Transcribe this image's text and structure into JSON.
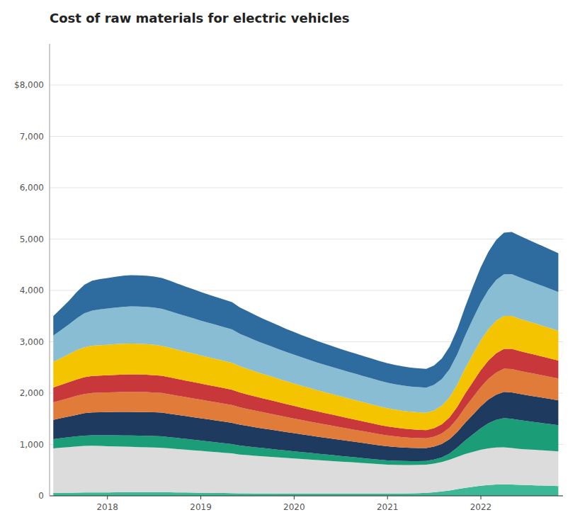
{
  "chart_data": {
    "type": "area",
    "title": "Cost of raw materials for electric vehicles",
    "stacked": true,
    "grid": true,
    "x": [
      2017.42,
      2017.5032,
      2017.5865,
      2017.6697,
      2017.7529,
      2017.8362,
      2017.9194,
      2018.0026,
      2018.0858,
      2018.1691,
      2018.2523,
      2018.3355,
      2018.4188,
      2018.502,
      2018.5852,
      2018.6685,
      2018.7517,
      2018.8349,
      2018.9182,
      2019.0014,
      2019.0846,
      2019.1678,
      2019.2511,
      2019.3343,
      2019.4175,
      2019.5008,
      2019.584,
      2019.6672,
      2019.7505,
      2019.8337,
      2019.9169,
      2020.0002,
      2020.0834,
      2020.1666,
      2020.2498,
      2020.3331,
      2020.4163,
      2020.4995,
      2020.5828,
      2020.666,
      2020.7492,
      2020.8325,
      2020.9157,
      2020.9989,
      2021.0822,
      2021.1654,
      2021.2486,
      2021.3318,
      2021.4151,
      2021.4983,
      2021.5815,
      2021.6648,
      2021.748,
      2021.8312,
      2021.9145,
      2021.9977,
      2022.0809,
      2022.1642,
      2022.2474,
      2022.3306,
      2022.4138,
      2022.4971,
      2022.5803,
      2022.6635,
      2022.7468,
      2022.83
    ],
    "xlim": [
      2017.38,
      2022.88
    ],
    "xticks": [
      2018,
      2019,
      2020,
      2021,
      2022
    ],
    "ylim": [
      0,
      8800
    ],
    "yticks": [
      0,
      {
        "value": 1000,
        "label": "1,000"
      },
      {
        "value": 2000,
        "label": "2,000"
      },
      {
        "value": 3000,
        "label": "3,000"
      },
      {
        "value": 4000,
        "label": "4,000"
      },
      {
        "value": 5000,
        "label": "5,000"
      },
      {
        "value": 6000,
        "label": "6,000"
      },
      {
        "value": 7000,
        "label": "7,000"
      },
      {
        "value": 8000,
        "label": "$8,000"
      }
    ],
    "series": [
      {
        "color": "#3db897",
        "values": [
          55,
          58,
          60,
          62,
          64,
          65,
          66,
          67,
          68,
          69,
          70,
          70,
          70,
          70,
          70,
          68,
          66,
          64,
          62,
          60,
          58,
          56,
          54,
          52,
          50,
          48,
          46,
          45,
          44,
          43,
          42,
          42,
          42,
          42,
          42,
          42,
          42,
          42,
          42,
          42,
          42,
          42,
          42,
          42,
          43,
          45,
          48,
          52,
          58,
          68,
          85,
          105,
          130,
          155,
          175,
          195,
          210,
          220,
          225,
          220,
          215,
          210,
          205,
          200,
          195,
          190
        ]
      },
      {
        "color": "#dcdcdc",
        "values": [
          870,
          880,
          890,
          900,
          910,
          910,
          905,
          900,
          895,
          890,
          885,
          880,
          875,
          870,
          865,
          855,
          845,
          835,
          825,
          815,
          805,
          795,
          785,
          775,
          755,
          745,
          735,
          725,
          715,
          705,
          695,
          685,
          675,
          665,
          655,
          645,
          635,
          625,
          615,
          605,
          595,
          585,
          575,
          565,
          560,
          555,
          552,
          550,
          548,
          560,
          575,
          600,
          630,
          660,
          680,
          700,
          715,
          720,
          720,
          710,
          700,
          695,
          690,
          685,
          680,
          675
        ]
      },
      {
        "color": "#1b9e77",
        "values": [
          180,
          185,
          190,
          195,
          200,
          205,
          208,
          212,
          215,
          218,
          220,
          222,
          225,
          225,
          225,
          220,
          215,
          210,
          205,
          200,
          195,
          190,
          185,
          180,
          175,
          170,
          165,
          160,
          155,
          150,
          145,
          140,
          135,
          130,
          125,
          120,
          115,
          110,
          105,
          100,
          95,
          90,
          85,
          82,
          80,
          78,
          76,
          75,
          74,
          78,
          90,
          120,
          180,
          260,
          340,
          420,
          490,
          540,
          570,
          570,
          560,
          550,
          540,
          530,
          520,
          510
        ]
      },
      {
        "color": "#1e3a5f",
        "values": [
          375,
          390,
          405,
          420,
          435,
          445,
          450,
          452,
          455,
          458,
          460,
          460,
          462,
          462,
          460,
          455,
          450,
          445,
          440,
          435,
          430,
          425,
          420,
          415,
          405,
          398,
          390,
          382,
          375,
          368,
          360,
          353,
          345,
          338,
          330,
          325,
          318,
          312,
          306,
          300,
          294,
          288,
          282,
          276,
          270,
          265,
          260,
          255,
          250,
          252,
          260,
          278,
          305,
          345,
          385,
          425,
          460,
          490,
          510,
          515,
          510,
          505,
          500,
          495,
          490,
          485
        ]
      },
      {
        "color": "#e07b39",
        "values": [
          340,
          350,
          360,
          370,
          375,
          378,
          380,
          382,
          385,
          388,
          390,
          390,
          388,
          385,
          382,
          378,
          374,
          370,
          366,
          362,
          358,
          354,
          350,
          346,
          338,
          330,
          322,
          315,
          308,
          300,
          292,
          285,
          278,
          271,
          264,
          258,
          252,
          246,
          240,
          234,
          228,
          222,
          216,
          210,
          205,
          200,
          196,
          193,
          190,
          195,
          205,
          225,
          258,
          300,
          338,
          375,
          405,
          430,
          450,
          455,
          450,
          445,
          440,
          435,
          430,
          425
        ]
      },
      {
        "color": "#c8373a",
        "values": [
          290,
          300,
          308,
          318,
          325,
          330,
          332,
          335,
          338,
          340,
          342,
          342,
          340,
          338,
          335,
          330,
          326,
          322,
          318,
          314,
          310,
          306,
          302,
          298,
          290,
          283,
          276,
          270,
          264,
          258,
          252,
          246,
          240,
          234,
          228,
          222,
          216,
          210,
          204,
          198,
          192,
          186,
          180,
          176,
          172,
          168,
          164,
          162,
          160,
          165,
          178,
          200,
          232,
          268,
          300,
          330,
          355,
          375,
          388,
          392,
          385,
          378,
          372,
          365,
          358,
          350
        ]
      },
      {
        "color": "#f5c400",
        "values": [
          500,
          520,
          545,
          570,
          585,
          590,
          592,
          595,
          598,
          600,
          600,
          598,
          595,
          590,
          585,
          578,
          570,
          562,
          555,
          548,
          542,
          536,
          530,
          524,
          510,
          498,
          486,
          475,
          465,
          455,
          445,
          436,
          428,
          420,
          412,
          405,
          398,
          392,
          386,
          380,
          374,
          368,
          362,
          356,
          350,
          345,
          342,
          340,
          338,
          345,
          362,
          390,
          435,
          490,
          540,
          580,
          610,
          635,
          640,
          640,
          630,
          620,
          610,
          600,
          590,
          580
        ]
      },
      {
        "color": "#89bdd3",
        "values": [
          510,
          545,
          580,
          620,
          660,
          685,
          698,
          705,
          712,
          718,
          722,
          724,
          725,
          724,
          720,
          712,
          703,
          694,
          686,
          678,
          670,
          664,
          658,
          652,
          632,
          620,
          608,
          597,
          587,
          577,
          568,
          560,
          552,
          545,
          538,
          532,
          526,
          520,
          516,
          512,
          508,
          504,
          500,
          497,
          494,
          492,
          490,
          489,
          488,
          498,
          518,
          548,
          590,
          640,
          688,
          730,
          765,
          792,
          810,
          815,
          805,
          795,
          785,
          775,
          765,
          755
        ]
      },
      {
        "color": "#2e6b9e",
        "values": [
          380,
          420,
          460,
          510,
          555,
          580,
          590,
          595,
          600,
          605,
          608,
          608,
          607,
          605,
          600,
          592,
          583,
          574,
          566,
          558,
          550,
          544,
          538,
          532,
          515,
          503,
          491,
          480,
          470,
          460,
          450,
          442,
          434,
          427,
          420,
          414,
          408,
          403,
          398,
          394,
          390,
          386,
          382,
          378,
          375,
          372,
          370,
          368,
          367,
          378,
          400,
          438,
          490,
          558,
          628,
          690,
          742,
          782,
          810,
          820,
          810,
          798,
          787,
          776,
          765,
          755
        ]
      }
    ]
  }
}
